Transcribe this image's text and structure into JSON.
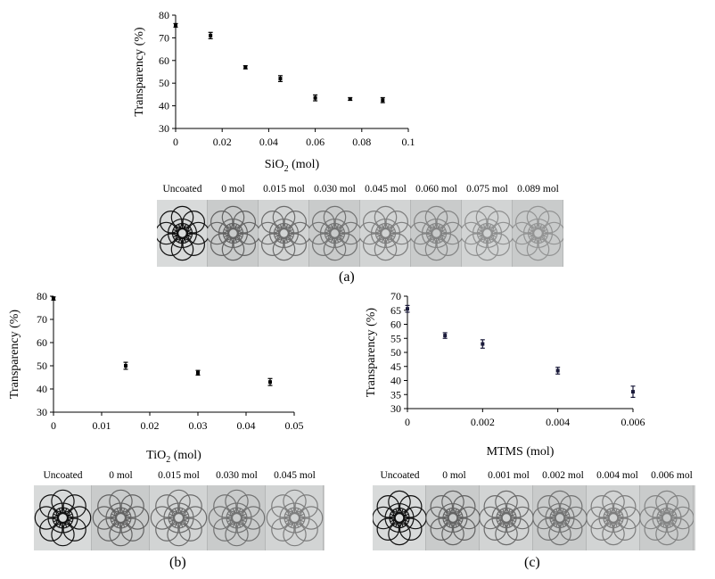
{
  "figure": {
    "panels": [
      {
        "caption": "(a)",
        "photo_labels": [
          "Uncoated",
          "0 mol",
          "0.015 mol",
          "0.030 mol",
          "0.045 mol",
          "0.060 mol",
          "0.075 mol",
          "0.089 mol"
        ]
      },
      {
        "caption": "(b)",
        "photo_labels": [
          "Uncoated",
          "0 mol",
          "0.015 mol",
          "0.030 mol",
          "0.045 mol"
        ]
      },
      {
        "caption": "(c)",
        "photo_labels": [
          "Uncoated",
          "0 mol",
          "0.001 mol",
          "0.002 mol",
          "0.004 mol",
          "0.006 mol"
        ]
      }
    ],
    "photo_icon": "rosette-emblem",
    "colors": {
      "marker": "#000000",
      "marker_c": "#1a1a3a",
      "photo_bg": "#cfd0d0",
      "emblem": "#444444"
    }
  },
  "chart_data": [
    {
      "type": "scatter",
      "xlabel_main": "SiO",
      "xlabel_sub": "2",
      "xlabel_unit": " (mol)",
      "ylabel": "Transparency (%)",
      "xlim": [
        0,
        0.1
      ],
      "ylim": [
        30,
        80
      ],
      "xticks": [
        0,
        0.02,
        0.04,
        0.06,
        0.08,
        0.1
      ],
      "xtick_labels": [
        "0",
        "0.02",
        "0.04",
        "0.06",
        "0.08",
        "0.1"
      ],
      "yticks": [
        30,
        40,
        50,
        60,
        70,
        80
      ],
      "ytick_labels": [
        "30",
        "40",
        "50",
        "60",
        "70",
        "80"
      ],
      "points": [
        {
          "x": 0,
          "y": 75.5,
          "err": 0.8
        },
        {
          "x": 0.015,
          "y": 71,
          "err": 1.4
        },
        {
          "x": 0.03,
          "y": 57,
          "err": 0.7
        },
        {
          "x": 0.045,
          "y": 52,
          "err": 1.3
        },
        {
          "x": 0.06,
          "y": 43.5,
          "err": 1.3
        },
        {
          "x": 0.075,
          "y": 43,
          "err": 0.6
        },
        {
          "x": 0.089,
          "y": 42.5,
          "err": 1.1
        }
      ],
      "grid": false
    },
    {
      "type": "scatter",
      "xlabel_main": "TiO",
      "xlabel_sub": "2",
      "xlabel_unit": " (mol)",
      "ylabel": "Transparency (%)",
      "xlim": [
        0,
        0.05
      ],
      "ylim": [
        30,
        80
      ],
      "xticks": [
        0,
        0.01,
        0.02,
        0.03,
        0.04,
        0.05
      ],
      "xtick_labels": [
        "0",
        "0.01",
        "0.02",
        "0.03",
        "0.04",
        "0.05"
      ],
      "yticks": [
        30,
        40,
        50,
        60,
        70,
        80
      ],
      "ytick_labels": [
        "30",
        "40",
        "50",
        "60",
        "70",
        "80"
      ],
      "points": [
        {
          "x": 0,
          "y": 79,
          "err": 0.7
        },
        {
          "x": 0.015,
          "y": 50,
          "err": 1.5
        },
        {
          "x": 0.03,
          "y": 47,
          "err": 1.0
        },
        {
          "x": 0.045,
          "y": 43,
          "err": 1.5
        }
      ],
      "grid": false
    },
    {
      "type": "scatter",
      "xlabel_main": "MTMS",
      "xlabel_sub": "",
      "xlabel_unit": " (mol)",
      "ylabel": "Transparency (%)",
      "xlim": [
        0,
        0.006
      ],
      "ylim": [
        30,
        70
      ],
      "xticks": [
        0,
        0.002,
        0.004,
        0.006
      ],
      "xtick_labels": [
        "0",
        "0.002",
        "0.004",
        "0.006"
      ],
      "yticks": [
        30,
        35,
        40,
        45,
        50,
        55,
        60,
        65,
        70
      ],
      "ytick_labels": [
        "30",
        "35",
        "40",
        "45",
        "50",
        "55",
        "60",
        "65",
        "70"
      ],
      "points": [
        {
          "x": 0,
          "y": 65.5,
          "err": 1.2
        },
        {
          "x": 0.001,
          "y": 56,
          "err": 1.0
        },
        {
          "x": 0.002,
          "y": 53,
          "err": 1.5
        },
        {
          "x": 0.004,
          "y": 43.5,
          "err": 1.2
        },
        {
          "x": 0.006,
          "y": 36,
          "err": 2.0
        }
      ],
      "grid": false
    }
  ]
}
